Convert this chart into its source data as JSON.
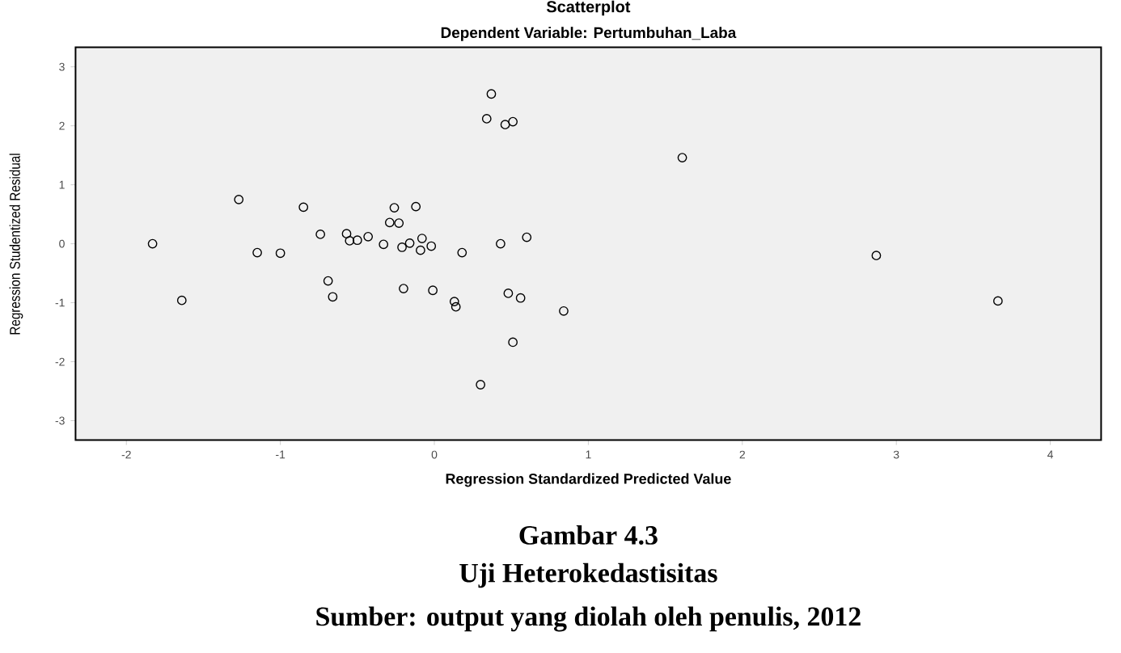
{
  "chart_data": {
    "type": "scatter",
    "title": "Scatterplot",
    "subtitle": "Dependent Variable: Pertumbuhan_Laba",
    "xlabel": "Regression Standardized Predicted Value",
    "ylabel": "Regression Studentized Residual",
    "annotations": [
      "Gambar 4.3",
      "Uji Heterokedastisitas",
      "Sumber: output yang diolah oleh penulis, 2012"
    ],
    "x": [
      -1.83,
      -1.64,
      -1.27,
      -1.15,
      -1.0,
      -0.85,
      -0.74,
      -0.69,
      -0.66,
      -0.57,
      -0.55,
      -0.5,
      -0.43,
      -0.33,
      -0.29,
      -0.26,
      -0.23,
      -0.21,
      -0.2,
      -0.16,
      -0.12,
      -0.09,
      -0.08,
      -0.02,
      -0.01,
      0.13,
      0.14,
      0.18,
      0.3,
      0.34,
      0.37,
      0.43,
      0.46,
      0.51,
      0.48,
      0.51,
      0.56,
      0.6,
      0.84,
      1.61,
      2.87,
      3.66
    ],
    "values": [
      0.0,
      -0.96,
      0.75,
      -0.15,
      -0.16,
      0.62,
      0.16,
      -0.63,
      -0.9,
      0.17,
      0.05,
      0.06,
      0.12,
      -0.01,
      0.36,
      0.61,
      0.35,
      -0.06,
      -0.76,
      0.01,
      0.63,
      -0.11,
      0.09,
      -0.04,
      -0.79,
      -0.98,
      -1.07,
      -0.15,
      -2.39,
      2.12,
      2.54,
      0.0,
      2.02,
      2.07,
      -0.84,
      -1.67,
      -0.92,
      0.11,
      -1.14,
      1.46,
      -0.2,
      -0.97
    ],
    "color": "#000000",
    "marker": "circle",
    "grid": false,
    "xlim": [
      -2.33,
      4.33
    ],
    "ylim": [
      -3.33,
      3.33
    ],
    "xticks": [
      -2,
      -1,
      0,
      1,
      2,
      3,
      4
    ],
    "yticks": [
      -3,
      -2,
      -1,
      0,
      1,
      2,
      3
    ]
  }
}
